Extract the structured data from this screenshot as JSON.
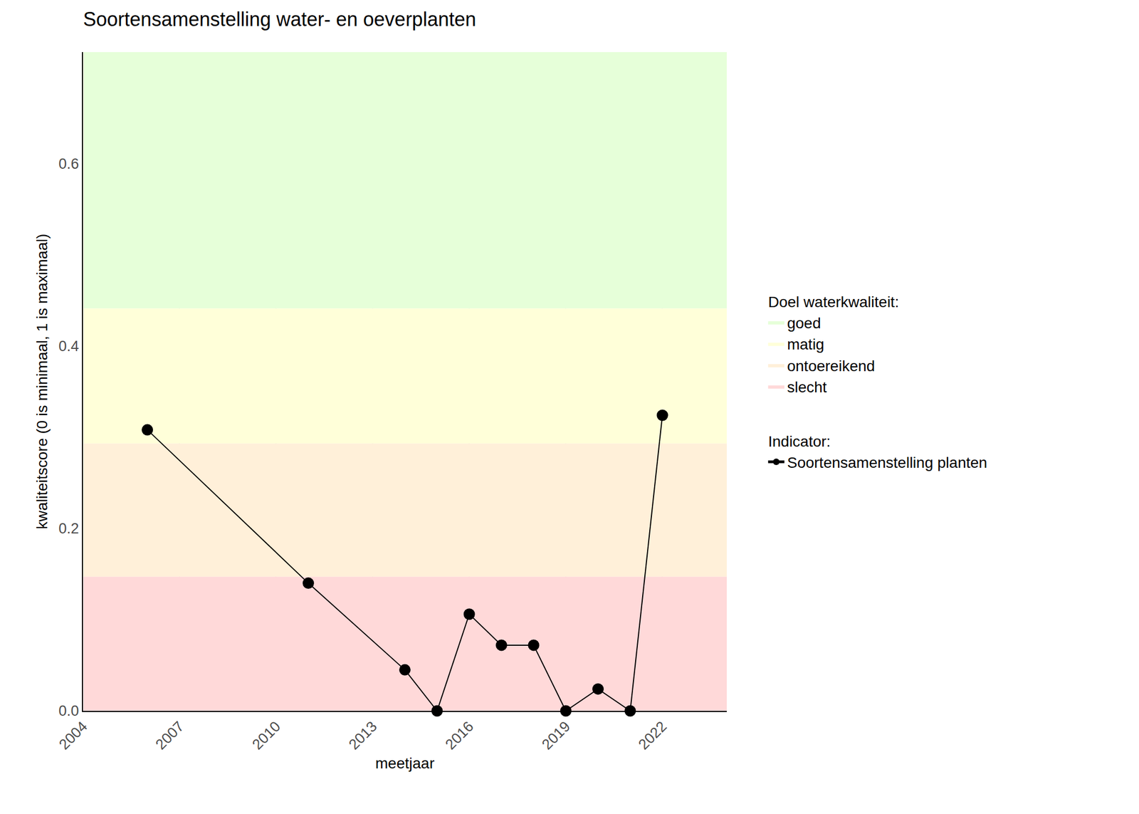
{
  "chart_data": {
    "type": "line",
    "title": "Soortensamenstelling water- en oeverplanten",
    "x_label": "meetjaar",
    "y_label": "kwaliteitscore (0 is minimaal, 1 is maximaal)",
    "x": [
      2006,
      2011,
      2014,
      2015,
      2016,
      2017,
      2018,
      2019,
      2020,
      2021,
      2022
    ],
    "series": [
      {
        "name": "Soortensamenstelling planten",
        "color": "#000000",
        "marker": "circle",
        "line_style": "solid",
        "group_title": "Indicator:",
        "values": [
          0.308,
          0.14,
          0.045,
          0.0,
          0.106,
          0.072,
          0.072,
          0.0,
          0.024,
          0.0,
          0.324
        ]
      }
    ],
    "bands": {
      "title": "Doel waterkwaliteit:",
      "items": [
        {
          "name": "goed",
          "color": "#E6FFD9",
          "from": 0.441,
          "to": 0.722
        },
        {
          "name": "matig",
          "color": "#FFFFD9",
          "from": 0.293,
          "to": 0.441
        },
        {
          "name": "ontoereikend",
          "color": "#FFF0D9",
          "from": 0.147,
          "to": 0.293
        },
        {
          "name": "slecht",
          "color": "#FFD9D9",
          "from": 0.0,
          "to": 0.147
        }
      ]
    },
    "xlim": [
      2004,
      2024
    ],
    "xticks": [
      2004,
      2007,
      2010,
      2013,
      2016,
      2019,
      2022
    ],
    "ylim": [
      0,
      0.722
    ],
    "yticks": [
      {
        "value": 0,
        "label": "0.0"
      },
      {
        "value": 0.2,
        "label": "0.2"
      },
      {
        "value": 0.4,
        "label": "0.4"
      },
      {
        "value": 0.6,
        "label": "0.6"
      }
    ],
    "grid": true,
    "legend": "right"
  }
}
